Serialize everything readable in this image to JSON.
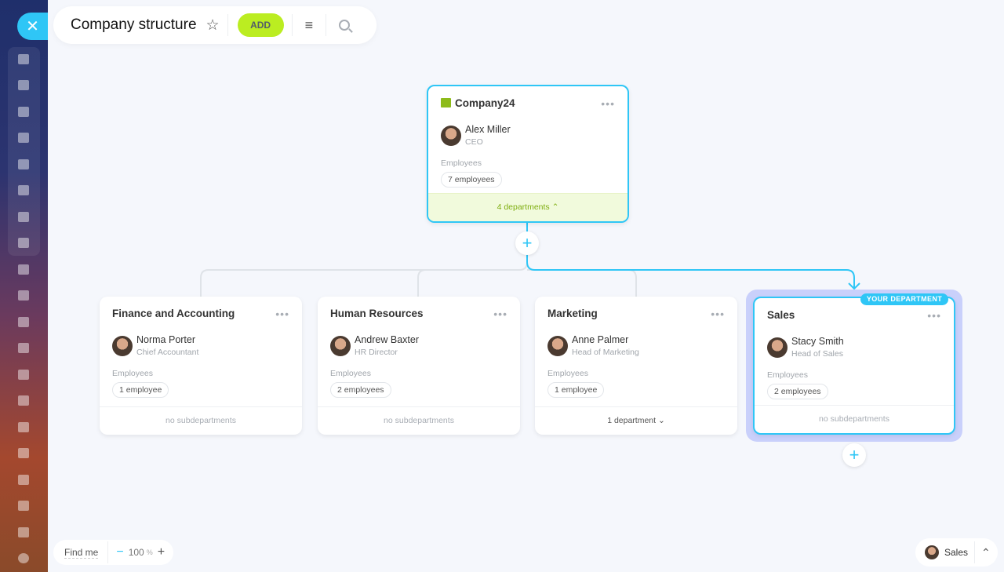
{
  "header": {
    "title": "Company structure",
    "add_label": "ADD"
  },
  "sidebar": {
    "icons": [
      "workflow-icon",
      "feed-icon",
      "chat-icon",
      "calendar-icon",
      "documents-icon",
      "drive-icon",
      "mail-icon",
      "groups-icon",
      "copilot-icon",
      "tasks-icon",
      "crm-funnel-icon",
      "bank-icon",
      "target-icon",
      "shop-icon",
      "sign-icon",
      "e-signature-icon",
      "analytics-icon",
      "contact-card-icon",
      "box-icon",
      "more-icon"
    ]
  },
  "root": {
    "name": "Company24",
    "head": "Alex Miller",
    "role": "CEO",
    "employees_label": "Employees",
    "employees": "7 employees",
    "footer": "4 departments"
  },
  "departments": [
    {
      "name": "Finance and Accounting",
      "head": "Norma Porter",
      "role": "Chief Accountant",
      "employees_label": "Employees",
      "employees": "1 employee",
      "footer": "no subdepartments"
    },
    {
      "name": "Human Resources",
      "head": "Andrew Baxter",
      "role": "HR Director",
      "employees_label": "Employees",
      "employees": "2 employees",
      "footer": "no subdepartments"
    },
    {
      "name": "Marketing",
      "head": "Anne Palmer",
      "role": "Head of Marketing",
      "employees_label": "Employees",
      "employees": "1 employee",
      "footer": "1 department"
    },
    {
      "name": "Sales",
      "head": "Stacy Smith",
      "role": "Head of Sales",
      "employees_label": "Employees",
      "employees": "2 employees",
      "footer": "no subdepartments",
      "badge": "YOUR DEPARTMENT"
    }
  ],
  "footer": {
    "find_me": "Find me",
    "zoom": "100",
    "zoom_unit": "%",
    "current_department": "Sales"
  },
  "colors": {
    "accent": "#2fc6f6",
    "add": "#bbed21",
    "root_footer": "#f1fadc",
    "highlight": "#c9d0fb"
  }
}
